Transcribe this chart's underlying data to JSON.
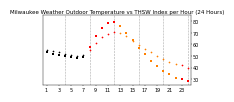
{
  "title": "Milwaukee Weather Outdoor Temperature vs THSW Index per Hour (24 Hours)",
  "background_color": "#ffffff",
  "grid_color": "#aaaaaa",
  "temp_data": [
    {
      "hour": 1,
      "temp": 55,
      "color": "#000000"
    },
    {
      "hour": 2,
      "temp": 54,
      "color": "#000000"
    },
    {
      "hour": 3,
      "temp": 53,
      "color": "#000000"
    },
    {
      "hour": 4,
      "temp": 52,
      "color": "#000000"
    },
    {
      "hour": 5,
      "temp": 51,
      "color": "#000000"
    },
    {
      "hour": 6,
      "temp": 50,
      "color": "#000000"
    },
    {
      "hour": 7,
      "temp": 51,
      "color": "#000000"
    },
    {
      "hour": 8,
      "temp": 55,
      "color": "#ff0000"
    },
    {
      "hour": 9,
      "temp": 61,
      "color": "#ff0000"
    },
    {
      "hour": 10,
      "temp": 66,
      "color": "#ff0000"
    },
    {
      "hour": 11,
      "temp": 69,
      "color": "#ff0000"
    },
    {
      "hour": 12,
      "temp": 71,
      "color": "#ff0000"
    },
    {
      "hour": 13,
      "temp": 70,
      "color": "#ff8000"
    },
    {
      "hour": 14,
      "temp": 67,
      "color": "#ff8000"
    },
    {
      "hour": 15,
      "temp": 63,
      "color": "#ff8000"
    },
    {
      "hour": 16,
      "temp": 59,
      "color": "#ff8000"
    },
    {
      "hour": 17,
      "temp": 56,
      "color": "#ff8000"
    },
    {
      "hour": 18,
      "temp": 53,
      "color": "#ff8000"
    },
    {
      "hour": 19,
      "temp": 50,
      "color": "#ff8000"
    },
    {
      "hour": 20,
      "temp": 47,
      "color": "#ff8000"
    },
    {
      "hour": 21,
      "temp": 45,
      "color": "#ff8000"
    },
    {
      "hour": 22,
      "temp": 43,
      "color": "#ff8000"
    },
    {
      "hour": 23,
      "temp": 42,
      "color": "#ff0000"
    },
    {
      "hour": 24,
      "temp": 40,
      "color": "#ff0000"
    }
  ],
  "thsw_data": [
    {
      "hour": 1,
      "thsw": 53,
      "color": "#000000"
    },
    {
      "hour": 2,
      "thsw": 52,
      "color": "#000000"
    },
    {
      "hour": 3,
      "thsw": 51,
      "color": "#000000"
    },
    {
      "hour": 4,
      "thsw": 50,
      "color": "#000000"
    },
    {
      "hour": 5,
      "thsw": 49,
      "color": "#000000"
    },
    {
      "hour": 6,
      "thsw": 48,
      "color": "#000000"
    },
    {
      "hour": 7,
      "thsw": 49,
      "color": "#000000"
    },
    {
      "hour": 8,
      "thsw": 58,
      "color": "#ff0000"
    },
    {
      "hour": 9,
      "thsw": 67,
      "color": "#ff0000"
    },
    {
      "hour": 10,
      "thsw": 74,
      "color": "#ff0000"
    },
    {
      "hour": 11,
      "thsw": 78,
      "color": "#ff0000"
    },
    {
      "hour": 12,
      "thsw": 79,
      "color": "#ff0000"
    },
    {
      "hour": 13,
      "thsw": 76,
      "color": "#ff8000"
    },
    {
      "hour": 14,
      "thsw": 70,
      "color": "#ff8000"
    },
    {
      "hour": 15,
      "thsw": 64,
      "color": "#ff8000"
    },
    {
      "hour": 16,
      "thsw": 57,
      "color": "#ff8000"
    },
    {
      "hour": 17,
      "thsw": 52,
      "color": "#ff8000"
    },
    {
      "hour": 18,
      "thsw": 46,
      "color": "#ff8000"
    },
    {
      "hour": 19,
      "thsw": 41,
      "color": "#ff8000"
    },
    {
      "hour": 20,
      "thsw": 37,
      "color": "#ff8000"
    },
    {
      "hour": 21,
      "thsw": 34,
      "color": "#ff8000"
    },
    {
      "hour": 22,
      "thsw": 31,
      "color": "#ff8000"
    },
    {
      "hour": 23,
      "thsw": 30,
      "color": "#ff0000"
    },
    {
      "hour": 24,
      "thsw": 28,
      "color": "#ff0000"
    }
  ],
  "ylim": [
    25,
    85
  ],
  "yticks": [
    30,
    40,
    50,
    60,
    70,
    80
  ],
  "ytick_labels": [
    "30",
    "40",
    "50",
    "60",
    "70",
    "80"
  ],
  "xlim": [
    0.5,
    24.5
  ],
  "xticks": [
    1,
    3,
    5,
    7,
    9,
    11,
    13,
    15,
    17,
    19,
    21,
    23
  ],
  "xlabel_labels": [
    "1",
    "3",
    "5",
    "7",
    "9",
    "11",
    "13",
    "15",
    "17",
    "19",
    "21",
    "23"
  ],
  "vlines": [
    4,
    8,
    12,
    16,
    20,
    24
  ],
  "marker_size": 1.5,
  "title_fontsize": 4,
  "tick_fontsize": 3.5
}
